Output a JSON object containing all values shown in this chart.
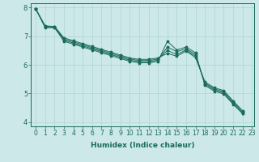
{
  "xlabel": "Humidex (Indice chaleur)",
  "xlim": [
    -0.5,
    23.2
  ],
  "ylim": [
    3.85,
    8.15
  ],
  "background_color": "#cce8e8",
  "grid_color": "#aed4d4",
  "line_color": "#1a6b5a",
  "series": [
    [
      7.95,
      7.3,
      7.3,
      6.82,
      6.72,
      6.62,
      6.52,
      6.42,
      6.32,
      6.22,
      6.12,
      6.07,
      6.07,
      6.12,
      6.82,
      6.52,
      6.62,
      6.42,
      5.28,
      5.08,
      4.98,
      4.62,
      4.3
    ],
    [
      7.95,
      7.32,
      7.3,
      6.86,
      6.76,
      6.66,
      6.56,
      6.46,
      6.36,
      6.26,
      6.16,
      6.11,
      6.11,
      6.16,
      6.62,
      6.46,
      6.56,
      6.36,
      5.32,
      5.12,
      5.02,
      4.66,
      4.3
    ],
    [
      7.95,
      7.34,
      7.32,
      6.9,
      6.8,
      6.7,
      6.6,
      6.5,
      6.4,
      6.3,
      6.2,
      6.15,
      6.15,
      6.2,
      6.5,
      6.36,
      6.52,
      6.3,
      5.36,
      5.16,
      5.06,
      4.7,
      4.35
    ],
    [
      7.95,
      7.36,
      7.34,
      6.94,
      6.84,
      6.74,
      6.64,
      6.54,
      6.44,
      6.34,
      6.24,
      6.19,
      6.19,
      6.24,
      6.4,
      6.3,
      6.48,
      6.25,
      5.4,
      5.2,
      5.1,
      4.74,
      4.4
    ]
  ],
  "xtick_vals": [
    0,
    1,
    2,
    3,
    4,
    5,
    6,
    7,
    8,
    9,
    10,
    11,
    12,
    13,
    14,
    15,
    16,
    17,
    18,
    19,
    20,
    21,
    22,
    23
  ],
  "ytick_vals": [
    4,
    5,
    6,
    7,
    8
  ],
  "marker": "*",
  "markersize": 2.5,
  "linewidth": 0.7,
  "tick_fontsize": 5.5,
  "xlabel_fontsize": 6.5
}
